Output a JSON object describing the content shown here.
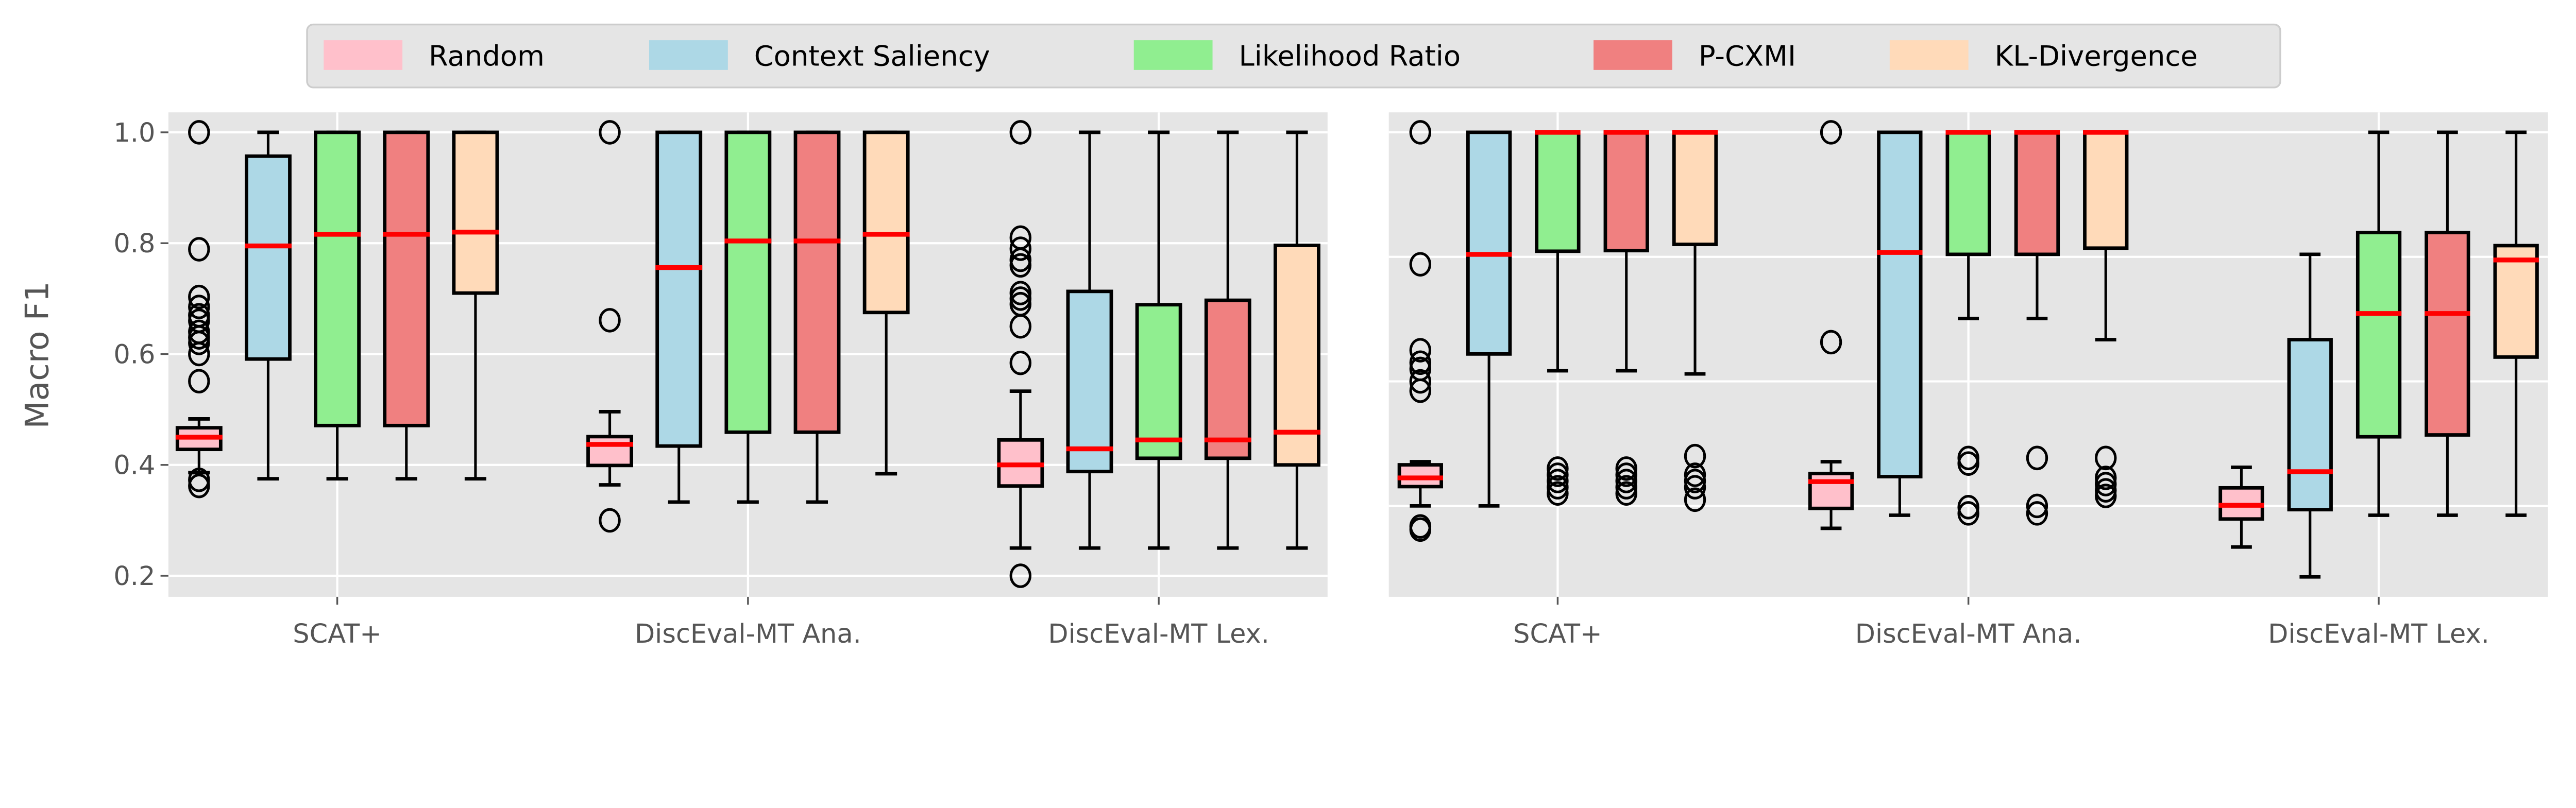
{
  "legend": {
    "entries": [
      {
        "label": "Random",
        "color": "#ffc0cb"
      },
      {
        "label": "Context Saliency",
        "color": "#add8e6"
      },
      {
        "label": "Likelihood Ratio",
        "color": "#90ee90"
      },
      {
        "label": "P-CXMI",
        "color": "#f08080"
      },
      {
        "label": "KL-Divergence",
        "color": "#ffdab9"
      }
    ],
    "placement": "top-center"
  },
  "colors": {
    "background": "#e5e5e5",
    "grid": "#ffffff",
    "median": "#ff0000",
    "box_edge": "#000000",
    "text": "#555555"
  },
  "chart_data": [
    {
      "type": "box",
      "panel": "left",
      "title": "",
      "xlabel": "",
      "ylabel": "Macro F1",
      "ylim": [
        0.162,
        1.036
      ],
      "yticks": [
        0.2,
        0.4,
        0.6,
        0.8,
        1.0
      ],
      "ytick_labels": [
        "0.2",
        "0.4",
        "0.6",
        "0.8",
        "1.0"
      ],
      "grid": true,
      "categories": [
        "SCAT+",
        "DiscEval-MT Ana.",
        "DiscEval-MT Lex."
      ],
      "series": [
        {
          "name": "Random",
          "boxes": [
            {
              "whislo": 0.386,
              "q1": 0.428,
              "med": 0.45,
              "q3": 0.467,
              "whishi": 0.483,
              "fliers": [
                1.0,
                0.789,
                0.703,
                0.685,
                0.67,
                0.66,
                0.64,
                0.63,
                0.62,
                0.6,
                0.551,
                0.373,
                0.362
              ]
            },
            {
              "whislo": 0.364,
              "q1": 0.399,
              "med": 0.437,
              "q3": 0.451,
              "whishi": 0.496,
              "fliers": [
                1.0,
                0.661,
                0.3
              ]
            },
            {
              "whislo": 0.25,
              "q1": 0.362,
              "med": 0.4,
              "q3": 0.445,
              "whishi": 0.533,
              "fliers": [
                1.0,
                0.81,
                0.79,
                0.77,
                0.76,
                0.71,
                0.7,
                0.69,
                0.65,
                0.584,
                0.2
              ]
            }
          ]
        },
        {
          "name": "Context Saliency",
          "boxes": [
            {
              "whislo": 0.375,
              "q1": 0.591,
              "med": 0.795,
              "q3": 0.957,
              "whishi": 1.0,
              "fliers": []
            },
            {
              "whislo": 0.333,
              "q1": 0.434,
              "med": 0.756,
              "q3": 1.0,
              "whishi": 1.0,
              "fliers": []
            },
            {
              "whislo": 0.25,
              "q1": 0.388,
              "med": 0.429,
              "q3": 0.713,
              "whishi": 1.0,
              "fliers": []
            }
          ]
        },
        {
          "name": "Likelihood Ratio",
          "boxes": [
            {
              "whislo": 0.375,
              "q1": 0.471,
              "med": 0.816,
              "q3": 1.0,
              "whishi": 1.0,
              "fliers": []
            },
            {
              "whislo": 0.333,
              "q1": 0.459,
              "med": 0.804,
              "q3": 1.0,
              "whishi": 1.0,
              "fliers": []
            },
            {
              "whislo": 0.25,
              "q1": 0.412,
              "med": 0.445,
              "q3": 0.689,
              "whishi": 1.0,
              "fliers": []
            }
          ]
        },
        {
          "name": "P-CXMI",
          "boxes": [
            {
              "whislo": 0.375,
              "q1": 0.471,
              "med": 0.816,
              "q3": 1.0,
              "whishi": 1.0,
              "fliers": []
            },
            {
              "whislo": 0.333,
              "q1": 0.459,
              "med": 0.804,
              "q3": 1.0,
              "whishi": 1.0,
              "fliers": []
            },
            {
              "whislo": 0.25,
              "q1": 0.412,
              "med": 0.445,
              "q3": 0.697,
              "whishi": 1.0,
              "fliers": []
            }
          ]
        },
        {
          "name": "KL-Divergence",
          "boxes": [
            {
              "whislo": 0.375,
              "q1": 0.71,
              "med": 0.82,
              "q3": 1.0,
              "whishi": 1.0,
              "fliers": []
            },
            {
              "whislo": 0.384,
              "q1": 0.675,
              "med": 0.816,
              "q3": 1.0,
              "whishi": 1.0,
              "fliers": []
            },
            {
              "whislo": 0.25,
              "q1": 0.4,
              "med": 0.459,
              "q3": 0.796,
              "whishi": 1.0,
              "fliers": []
            }
          ]
        }
      ]
    },
    {
      "type": "box",
      "panel": "right",
      "title": "",
      "xlabel": "",
      "ylabel": "",
      "ylim": [
        0.254,
        1.032
      ],
      "yticks": [
        0.4,
        0.6,
        0.8,
        1.0
      ],
      "ytick_labels": [],
      "grid": true,
      "categories": [
        "SCAT+",
        "DiscEval-MT Ana.",
        "DiscEval-MT Lex."
      ],
      "series": [
        {
          "name": "Random",
          "boxes": [
            {
              "whislo": 0.4,
              "q1": 0.431,
              "med": 0.445,
              "q3": 0.466,
              "whishi": 0.471,
              "fliers": [
                1.0,
                0.788,
                0.65,
                0.63,
                0.62,
                0.6,
                0.585,
                0.367,
                0.362
              ]
            },
            {
              "whislo": 0.364,
              "q1": 0.396,
              "med": 0.439,
              "q3": 0.452,
              "whishi": 0.471,
              "fliers": [
                1.0,
                0.663
              ]
            },
            {
              "whislo": 0.334,
              "q1": 0.379,
              "med": 0.401,
              "q3": 0.429,
              "whishi": 0.462,
              "fliers": []
            }
          ]
        },
        {
          "name": "Context Saliency",
          "boxes": [
            {
              "whislo": 0.4,
              "q1": 0.644,
              "med": 0.804,
              "q3": 1.0,
              "whishi": 1.0,
              "fliers": []
            },
            {
              "whislo": 0.385,
              "q1": 0.447,
              "med": 0.807,
              "q3": 1.0,
              "whishi": 1.0,
              "fliers": []
            },
            {
              "whislo": 0.286,
              "q1": 0.394,
              "med": 0.455,
              "q3": 0.667,
              "whishi": 0.804,
              "fliers": []
            }
          ]
        },
        {
          "name": "Likelihood Ratio",
          "boxes": [
            {
              "whislo": 0.617,
              "q1": 0.809,
              "med": 1.0,
              "q3": 1.0,
              "whishi": 1.0,
              "fliers": [
                0.46,
                0.45,
                0.44,
                0.43,
                0.42
              ]
            },
            {
              "whislo": 0.701,
              "q1": 0.804,
              "med": 1.0,
              "q3": 1.0,
              "whishi": 1.0,
              "fliers": [
                0.477,
                0.468,
                0.398,
                0.388
              ]
            },
            {
              "whislo": 0.385,
              "q1": 0.511,
              "med": 0.709,
              "q3": 0.839,
              "whishi": 1.0,
              "fliers": []
            }
          ]
        },
        {
          "name": "P-CXMI",
          "boxes": [
            {
              "whislo": 0.617,
              "q1": 0.81,
              "med": 1.0,
              "q3": 1.0,
              "whishi": 1.0,
              "fliers": [
                0.46,
                0.45,
                0.44,
                0.43,
                0.42
              ]
            },
            {
              "whislo": 0.701,
              "q1": 0.804,
              "med": 1.0,
              "q3": 1.0,
              "whishi": 1.0,
              "fliers": [
                0.477,
                0.4,
                0.388
              ]
            },
            {
              "whislo": 0.385,
              "q1": 0.514,
              "med": 0.709,
              "q3": 0.839,
              "whishi": 1.0,
              "fliers": []
            }
          ]
        },
        {
          "name": "KL-Divergence",
          "boxes": [
            {
              "whislo": 0.612,
              "q1": 0.82,
              "med": 1.0,
              "q3": 1.0,
              "whishi": 1.0,
              "fliers": [
                0.48,
                0.45,
                0.44,
                0.43,
                0.41
              ]
            },
            {
              "whislo": 0.667,
              "q1": 0.814,
              "med": 1.0,
              "q3": 1.0,
              "whishi": 1.0,
              "fliers": [
                0.477,
                0.445,
                0.435,
                0.425,
                0.416
              ]
            },
            {
              "whislo": 0.385,
              "q1": 0.639,
              "med": 0.795,
              "q3": 0.818,
              "whishi": 1.0,
              "fliers": []
            }
          ]
        }
      ]
    }
  ]
}
